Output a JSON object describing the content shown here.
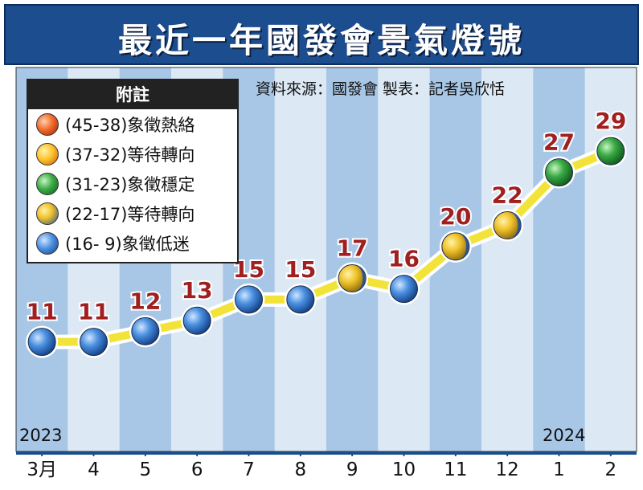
{
  "title": "最近一年國發會景氣燈號",
  "source": "資料來源：國發會  製表：記者吳欣恬",
  "legend": {
    "title": "附註",
    "items": [
      {
        "label": "(45-38)象徵熱絡",
        "color_inner": "#ff7a3c",
        "color_outer": "#c42a10"
      },
      {
        "label": "(37-32)等待轉向",
        "color_inner": "#ffd85a",
        "color_outer": "#e08a10"
      },
      {
        "label": "(31-23)象徵穩定",
        "color_inner": "#7ed67a",
        "color_outer": "#1f7a2a"
      },
      {
        "label": "(22-17)等待轉向",
        "color_inner": "#f5d23c",
        "color_outer": "#2f4f8f"
      },
      {
        "label": "(16-  9)象徵低迷",
        "color_inner": "#8ec2ff",
        "color_outer": "#1e4f9c"
      }
    ]
  },
  "years": {
    "start": "2023",
    "end": "2024"
  },
  "chart_data": {
    "type": "line",
    "categories": [
      "3月",
      "4",
      "5",
      "6",
      "7",
      "8",
      "9",
      "10",
      "11",
      "12",
      "1",
      "2"
    ],
    "values": [
      11,
      11,
      12,
      13,
      15,
      15,
      17,
      16,
      20,
      22,
      27,
      29
    ],
    "data_labels": [
      "11",
      "11",
      "12",
      "13",
      "15",
      "15",
      "17",
      "16",
      "20",
      "22",
      "27",
      "29"
    ],
    "marker_class": [
      "blue",
      "blue",
      "blue",
      "blue",
      "blue",
      "blue",
      "yellow-blue",
      "blue",
      "yellow-blue",
      "yellow-blue",
      "green",
      "green"
    ],
    "ylim": [
      9,
      30
    ],
    "colors": {
      "line": "#f2e33a",
      "line_halo": "#ffffff",
      "label": "#a01f1f",
      "stripe_dark": "#a8c7e6",
      "stripe_light": "#dce9f5",
      "axis_bar": "#1a4e8a"
    }
  }
}
